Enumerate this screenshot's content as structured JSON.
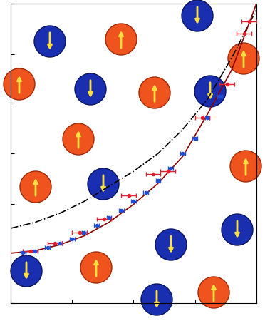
{
  "chart_data": {
    "type": "scatter",
    "xlim": [
      0,
      1
    ],
    "ylim": [
      0,
      1
    ],
    "xticks": [
      0,
      0.25,
      0.5,
      0.75,
      1
    ],
    "yticks": [
      0,
      0.17,
      0.33,
      0.5,
      0.67,
      0.83,
      1
    ],
    "tick_labels": false,
    "grid": false,
    "series": [
      {
        "type": "line",
        "color": "#000000",
        "line_style": "dashdot",
        "x": [
          0,
          0.1,
          0.2,
          0.3,
          0.4,
          0.5,
          0.6,
          0.7,
          0.8,
          0.9,
          1.0
        ],
        "values": [
          0.25,
          0.27,
          0.3,
          0.34,
          0.39,
          0.44,
          0.5,
          0.58,
          0.68,
          0.82,
          0.98
        ]
      },
      {
        "type": "line",
        "color": "#8b0000",
        "line_style": "solid",
        "x": [
          0,
          0.1,
          0.2,
          0.3,
          0.4,
          0.5,
          0.6,
          0.7,
          0.8,
          0.9,
          1.0
        ],
        "values": [
          0.167,
          0.175,
          0.195,
          0.225,
          0.27,
          0.33,
          0.4,
          0.49,
          0.63,
          0.78,
          1.0
        ]
      },
      {
        "type": "scatter",
        "color": "#1f4fd8",
        "marker": "o",
        "x": [
          0.05,
          0.1,
          0.15,
          0.2,
          0.25,
          0.3,
          0.35,
          0.4,
          0.45,
          0.5,
          0.55,
          0.6,
          0.65,
          0.7,
          0.75,
          0.8,
          0.85
        ],
        "values": [
          0.17,
          0.175,
          0.185,
          0.2,
          0.215,
          0.235,
          0.26,
          0.285,
          0.31,
          0.34,
          0.37,
          0.41,
          0.45,
          0.5,
          0.55,
          0.62,
          0.69
        ],
        "xerr": [
          0.01,
          0.01,
          0.01,
          0.01,
          0.01,
          0.01,
          0.01,
          0.01,
          0.01,
          0.01,
          0.01,
          0.01,
          0.01,
          0.01,
          0.01,
          0.01,
          0.01
        ]
      },
      {
        "type": "scatter",
        "color": "#e0202a",
        "marker": "o",
        "x": [
          0.08,
          0.18,
          0.28,
          0.38,
          0.48,
          0.58,
          0.64,
          0.78,
          0.88,
          0.95,
          0.97
        ],
        "values": [
          0.175,
          0.2,
          0.235,
          0.28,
          0.36,
          0.43,
          0.44,
          0.62,
          0.73,
          0.9,
          0.94
        ],
        "xerr": [
          0.03,
          0.03,
          0.03,
          0.03,
          0.03,
          0.03,
          0.03,
          0.03,
          0.03,
          0.03,
          0.03
        ]
      }
    ]
  }
}
